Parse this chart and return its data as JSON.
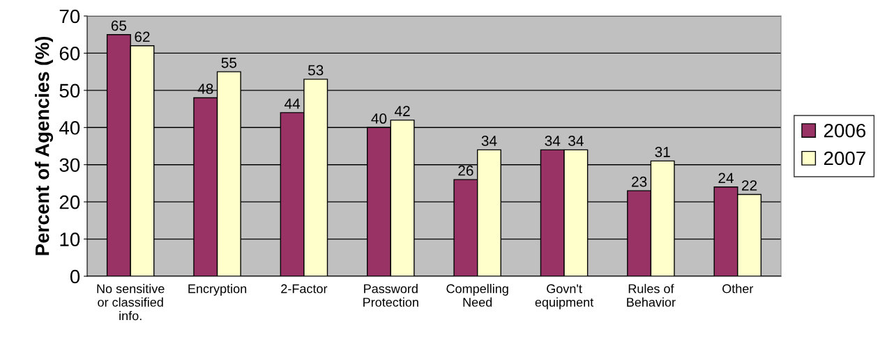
{
  "chart_data": {
    "type": "bar",
    "ylabel": "Percent of Agencies (%)",
    "categories": [
      "No sensitive\nor classified\ninfo.",
      "Encryption",
      "2-Factor",
      "Password\nProtection",
      "Compelling\nNeed",
      "Govn't\nequipment",
      "Rules of\nBehavior",
      "Other"
    ],
    "series": [
      {
        "name": "2006",
        "color": "#993366",
        "values": [
          65,
          48,
          44,
          40,
          26,
          34,
          23,
          24
        ]
      },
      {
        "name": "2007",
        "color": "#ffffcc",
        "values": [
          62,
          55,
          53,
          42,
          34,
          34,
          31,
          22
        ]
      }
    ],
    "ylim": [
      0,
      70
    ],
    "yticks": [
      0,
      10,
      20,
      30,
      40,
      50,
      60,
      70
    ],
    "grid": "y",
    "legend": "right",
    "data_labels": true
  }
}
